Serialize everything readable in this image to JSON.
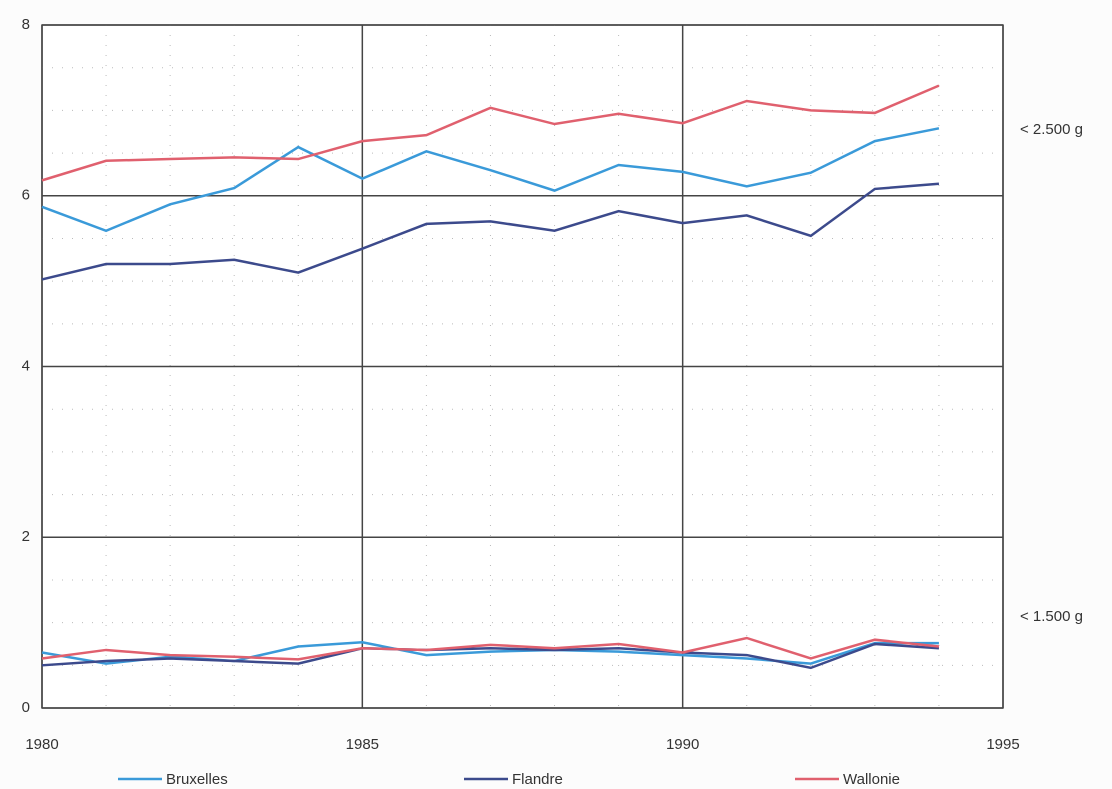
{
  "chart_data": {
    "type": "line",
    "x": [
      1980,
      1981,
      1982,
      1983,
      1984,
      1985,
      1986,
      1987,
      1988,
      1989,
      1990,
      1991,
      1992,
      1993,
      1994
    ],
    "series": [
      {
        "name": "Bruxelles",
        "color": "#3a9ad9",
        "values": [
          5.87,
          5.59,
          5.9,
          6.09,
          6.57,
          6.2,
          6.52,
          6.3,
          6.06,
          6.36,
          6.28,
          6.11,
          6.27,
          6.64,
          6.79
        ],
        "values_low": [
          0.65,
          0.52,
          0.6,
          0.55,
          0.72,
          0.77,
          0.62,
          0.66,
          0.68,
          0.66,
          0.62,
          0.58,
          0.52,
          0.76,
          0.76
        ]
      },
      {
        "name": "Flandre",
        "color": "#3c4a8c",
        "values": [
          5.02,
          5.2,
          5.2,
          5.25,
          5.1,
          5.38,
          5.67,
          5.7,
          5.59,
          5.82,
          5.68,
          5.77,
          5.53,
          6.08,
          6.14
        ],
        "values_low": [
          0.5,
          0.55,
          0.58,
          0.55,
          0.52,
          0.7,
          0.68,
          0.7,
          0.68,
          0.7,
          0.65,
          0.62,
          0.47,
          0.75,
          0.7
        ]
      },
      {
        "name": "Wallonie",
        "color": "#e0606e",
        "values": [
          6.18,
          6.41,
          6.43,
          6.45,
          6.43,
          6.64,
          6.71,
          7.03,
          6.84,
          6.96,
          6.85,
          7.11,
          7.0,
          6.97,
          7.29
        ],
        "values_low": [
          0.58,
          0.68,
          0.62,
          0.6,
          0.57,
          0.7,
          0.68,
          0.74,
          0.7,
          0.75,
          0.65,
          0.82,
          0.58,
          0.8,
          0.72
        ]
      }
    ],
    "annotations": [
      "< 2.500 g",
      "< 1.500 g"
    ],
    "xlim": [
      1980,
      1995
    ],
    "ylim": [
      0,
      8
    ],
    "xticks": [
      1980,
      1985,
      1990,
      1995
    ],
    "yticks": [
      0,
      2,
      4,
      6,
      8
    ],
    "minor_xticks": [
      1981,
      1982,
      1983,
      1984,
      1986,
      1987,
      1988,
      1989,
      1991,
      1992,
      1993,
      1994
    ],
    "minor_yticks": [
      0.5,
      1,
      1.5,
      2.5,
      3,
      3.5,
      4.5,
      5,
      5.5,
      6.5,
      7,
      7.5
    ],
    "grid": true,
    "legend": "bottom"
  }
}
